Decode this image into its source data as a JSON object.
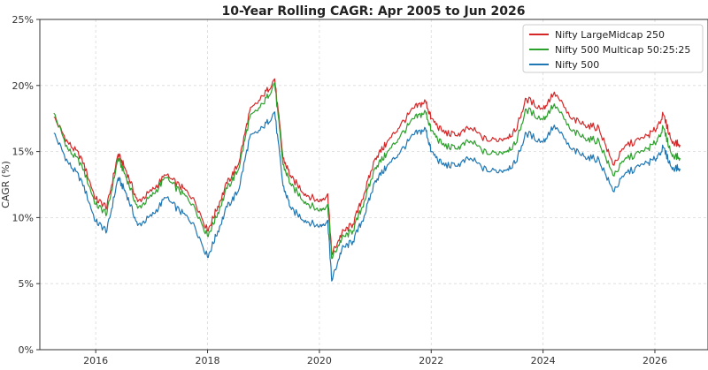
{
  "chart_data": {
    "type": "line",
    "title": "10-Year Rolling CAGR: Apr 2005 to Jun 2026",
    "ylabel": "CAGR (%)",
    "xlabel": "",
    "x_range": [
      2015.0,
      2026.95
    ],
    "ylim": [
      0,
      25
    ],
    "y_ticks": [
      0,
      5,
      10,
      15,
      20,
      25
    ],
    "y_tick_labels": [
      "0%",
      "5%",
      "10%",
      "15%",
      "20%",
      "25%"
    ],
    "x_ticks": [
      2016,
      2018,
      2020,
      2022,
      2024,
      2026
    ],
    "x_tick_labels": [
      "2016",
      "2018",
      "2020",
      "2022",
      "2024",
      "2026"
    ],
    "grid": true,
    "legend_position": "top-right",
    "x": [
      2015.25,
      2015.5,
      2015.75,
      2016.0,
      2016.2,
      2016.4,
      2016.55,
      2016.75,
      2017.0,
      2017.25,
      2017.5,
      2017.75,
      2018.0,
      2018.15,
      2018.35,
      2018.55,
      2018.75,
      2019.0,
      2019.2,
      2019.35,
      2019.5,
      2019.75,
      2020.0,
      2020.15,
      2020.22,
      2020.4,
      2020.6,
      2020.8,
      2021.0,
      2021.2,
      2021.45,
      2021.7,
      2021.9,
      2022.0,
      2022.2,
      2022.45,
      2022.7,
      2023.0,
      2023.3,
      2023.5,
      2023.7,
      2024.0,
      2024.2,
      2024.5,
      2024.75,
      2025.0,
      2025.25,
      2025.5,
      2025.8,
      2026.0,
      2026.15,
      2026.3,
      2026.45
    ],
    "series": [
      {
        "name": "Nifty LargeMidcap 250",
        "color": "#d62728",
        "values": [
          17.6,
          15.7,
          14.5,
          11.4,
          10.8,
          14.8,
          13.5,
          11.2,
          12.0,
          13.2,
          12.4,
          11.5,
          9.0,
          10.5,
          12.6,
          14.0,
          18.0,
          19.2,
          20.5,
          14.5,
          13.0,
          11.8,
          11.2,
          11.8,
          7.2,
          8.8,
          9.5,
          11.8,
          14.5,
          15.6,
          17.0,
          18.3,
          18.8,
          17.5,
          16.5,
          16.2,
          16.8,
          15.8,
          16.0,
          16.5,
          19.0,
          18.2,
          19.5,
          17.5,
          17.0,
          16.8,
          14.0,
          15.5,
          16.0,
          16.6,
          17.8,
          15.8,
          15.5
        ]
      },
      {
        "name": "Nifty 500 Multicap 50:25:25",
        "color": "#2ca02c",
        "values": [
          17.9,
          15.2,
          14.0,
          11.0,
          10.3,
          14.5,
          13.0,
          10.7,
          11.6,
          13.0,
          12.0,
          11.0,
          8.6,
          10.0,
          12.2,
          13.6,
          17.5,
          18.6,
          20.2,
          14.0,
          12.4,
          11.2,
          10.5,
          11.0,
          6.9,
          8.4,
          9.0,
          11.2,
          13.8,
          14.8,
          16.2,
          17.5,
          18.0,
          16.6,
          15.5,
          15.2,
          15.8,
          14.8,
          15.0,
          15.5,
          18.2,
          17.4,
          18.6,
          16.6,
          16.0,
          15.8,
          13.2,
          14.5,
          15.0,
          15.6,
          16.8,
          14.8,
          14.5
        ]
      },
      {
        "name": "Nifty 500",
        "color": "#1f77b4",
        "values": [
          16.4,
          14.2,
          12.8,
          9.7,
          9.0,
          13.0,
          11.8,
          9.4,
          10.1,
          11.5,
          10.5,
          9.6,
          7.0,
          8.6,
          10.8,
          12.0,
          16.0,
          16.8,
          18.0,
          12.4,
          10.6,
          9.8,
          9.3,
          9.8,
          5.2,
          7.6,
          8.2,
          10.1,
          12.8,
          13.8,
          15.0,
          16.3,
          16.7,
          15.0,
          14.0,
          13.9,
          14.5,
          13.5,
          13.6,
          14.1,
          16.4,
          15.7,
          17.0,
          15.2,
          14.6,
          14.4,
          12.0,
          13.4,
          14.0,
          14.4,
          15.3,
          13.8,
          13.7
        ]
      }
    ]
  }
}
